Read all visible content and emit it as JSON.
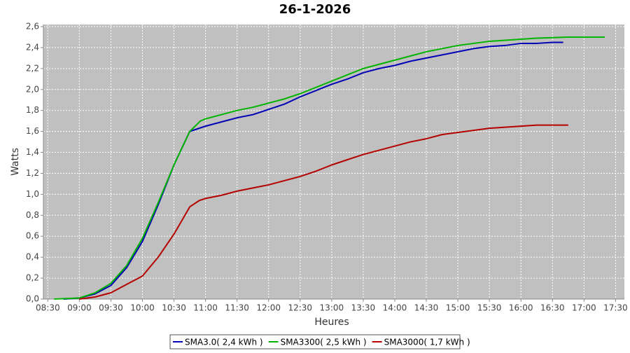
{
  "chart_data": {
    "type": "line",
    "title": "26-1-2026",
    "x_label": "Heures",
    "y_label": "Watts",
    "xlim": [
      8.43,
      17.64
    ],
    "ylim": [
      0,
      2.6
    ],
    "grid": true,
    "legend": "bottom",
    "xticks": [
      {
        "value": 8.5,
        "label": "08:30"
      },
      {
        "value": 9,
        "label": "09:00"
      },
      {
        "value": 9.5,
        "label": "09:30"
      },
      {
        "value": 10,
        "label": "10:00"
      },
      {
        "value": 10.5,
        "label": "10:30"
      },
      {
        "value": 11,
        "label": "11:00"
      },
      {
        "value": 11.5,
        "label": "11:30"
      },
      {
        "value": 12,
        "label": "12:00"
      },
      {
        "value": 12.5,
        "label": "12:30"
      },
      {
        "value": 13,
        "label": "13:00"
      },
      {
        "value": 13.5,
        "label": "13:30"
      },
      {
        "value": 14,
        "label": "14:00"
      },
      {
        "value": 14.5,
        "label": "14:30"
      },
      {
        "value": 15,
        "label": "15:00"
      },
      {
        "value": 15.5,
        "label": "15:30"
      },
      {
        "value": 16,
        "label": "16:00"
      },
      {
        "value": 16.5,
        "label": "16:30"
      },
      {
        "value": 17,
        "label": "17:00"
      },
      {
        "value": 17.5,
        "label": "17:30"
      }
    ],
    "yticks": [
      {
        "value": 0,
        "label": "0,0"
      },
      {
        "value": 0.2,
        "label": "0,2"
      },
      {
        "value": 0.4,
        "label": "0,4"
      },
      {
        "value": 0.6,
        "label": "0,6"
      },
      {
        "value": 0.8,
        "label": "0,8"
      },
      {
        "value": 1.0,
        "label": "1,0"
      },
      {
        "value": 1.2,
        "label": "1,2"
      },
      {
        "value": 1.4,
        "label": "1,4"
      },
      {
        "value": 1.6,
        "label": "1,6"
      },
      {
        "value": 1.8,
        "label": "1,8"
      },
      {
        "value": 2.0,
        "label": "2,0"
      },
      {
        "value": 2.2,
        "label": "2,2"
      },
      {
        "value": 2.4,
        "label": "2,4"
      },
      {
        "value": 2.6,
        "label": "2,6"
      }
    ],
    "series": [
      {
        "name": "SMA3.0( 2,4 kWh )",
        "color": "#0000b4",
        "x": [
          8.75,
          9.0,
          9.25,
          9.5,
          9.75,
          10.0,
          10.25,
          10.5,
          10.75,
          11.0,
          11.25,
          11.5,
          11.75,
          12.0,
          12.25,
          12.5,
          12.75,
          13.0,
          13.25,
          13.5,
          13.75,
          14.0,
          14.25,
          14.5,
          14.75,
          15.0,
          15.25,
          15.5,
          15.75,
          16.0,
          16.25,
          16.5,
          16.67
        ],
        "values": [
          0.0,
          0.01,
          0.05,
          0.13,
          0.3,
          0.55,
          0.9,
          1.28,
          1.6,
          1.65,
          1.69,
          1.73,
          1.76,
          1.81,
          1.86,
          1.93,
          1.99,
          2.05,
          2.1,
          2.16,
          2.2,
          2.23,
          2.27,
          2.3,
          2.33,
          2.36,
          2.39,
          2.41,
          2.42,
          2.44,
          2.44,
          2.45,
          2.45
        ]
      },
      {
        "name": "SMA3300( 2,5 kWh )",
        "color": "#00b400",
        "x": [
          8.6,
          9.0,
          9.25,
          9.5,
          9.75,
          10.0,
          10.25,
          10.5,
          10.75,
          10.92,
          11.0,
          11.25,
          11.5,
          11.75,
          12.0,
          12.25,
          12.5,
          12.75,
          13.0,
          13.25,
          13.5,
          13.75,
          14.0,
          14.25,
          14.5,
          14.75,
          15.0,
          15.25,
          15.5,
          15.75,
          16.0,
          16.25,
          16.5,
          16.75,
          17.0,
          17.33
        ],
        "values": [
          0.0,
          0.01,
          0.06,
          0.15,
          0.32,
          0.58,
          0.92,
          1.28,
          1.6,
          1.7,
          1.72,
          1.76,
          1.8,
          1.83,
          1.87,
          1.91,
          1.96,
          2.02,
          2.08,
          2.14,
          2.2,
          2.24,
          2.28,
          2.32,
          2.36,
          2.39,
          2.42,
          2.44,
          2.46,
          2.47,
          2.48,
          2.49,
          2.495,
          2.5,
          2.5,
          2.5
        ]
      },
      {
        "name": "SMA3000( 1,7 kWh )",
        "color": "#b40000",
        "x": [
          9.0,
          9.25,
          9.5,
          9.75,
          10.0,
          10.25,
          10.5,
          10.75,
          10.9,
          11.0,
          11.25,
          11.5,
          11.75,
          12.0,
          12.25,
          12.5,
          12.75,
          13.0,
          13.25,
          13.5,
          13.75,
          14.0,
          14.25,
          14.5,
          14.75,
          15.0,
          15.25,
          15.5,
          15.75,
          16.0,
          16.25,
          16.5,
          16.75
        ],
        "values": [
          0.0,
          0.02,
          0.06,
          0.14,
          0.22,
          0.4,
          0.62,
          0.88,
          0.94,
          0.96,
          0.99,
          1.03,
          1.06,
          1.09,
          1.13,
          1.17,
          1.22,
          1.28,
          1.33,
          1.38,
          1.42,
          1.46,
          1.5,
          1.53,
          1.57,
          1.59,
          1.61,
          1.63,
          1.64,
          1.65,
          1.66,
          1.66,
          1.66
        ]
      }
    ]
  }
}
